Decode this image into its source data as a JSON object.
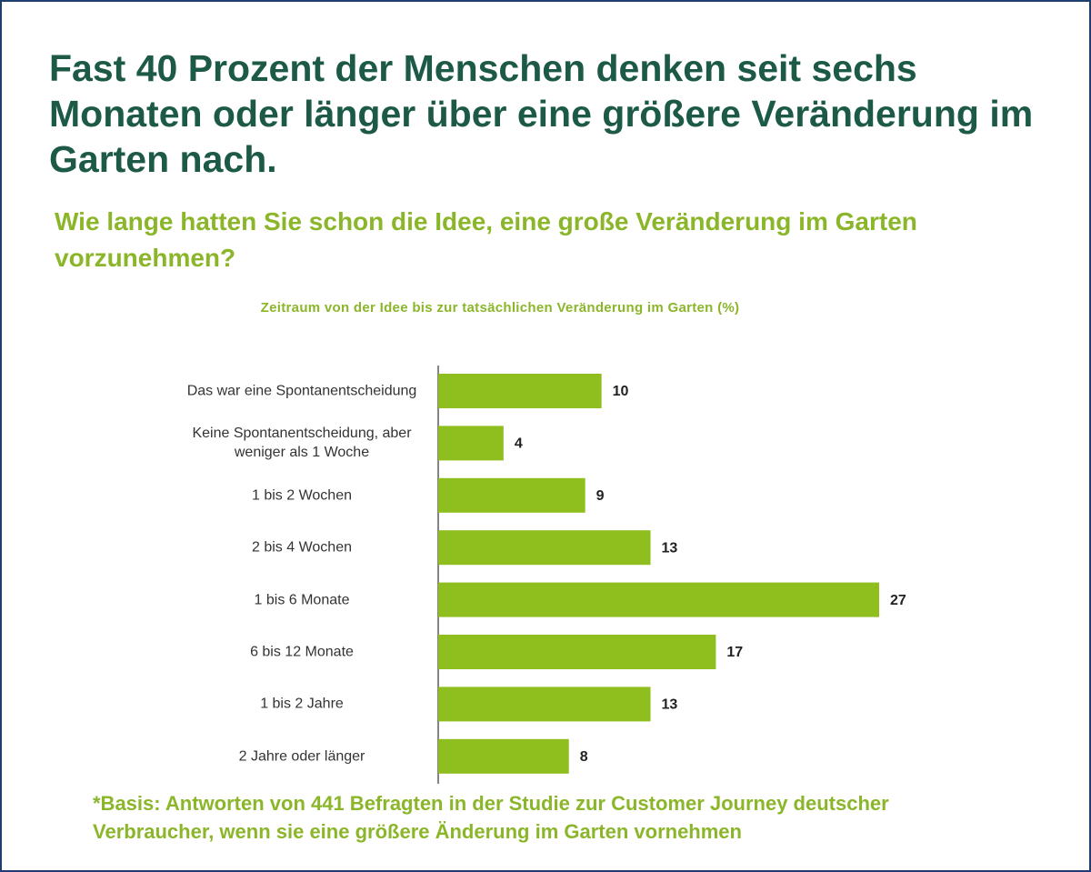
{
  "chart_data": {
    "type": "bar",
    "orientation": "horizontal",
    "title": "Fast 40 Prozent der Menschen denken seit sechs Monaten oder länger über eine größere Veränderung im Garten nach.",
    "subtitle": "Wie lange hatten Sie schon die Idee, eine große Veränderung im Garten vorzunehmen?",
    "chart_title": "Zeitraum von der Idee bis zur tatsächlichen Veränderung im Garten (%)",
    "categories": [
      "Das war eine Spontanentscheidung",
      "Keine Spontanentscheidung, aber weniger als 1 Woche",
      "1 bis 2 Wochen",
      "2 bis 4 Wochen",
      "1 bis 6 Monate",
      "6 bis 12 Monate",
      "1 bis 2 Jahre",
      "2 Jahre oder länger"
    ],
    "values": [
      10,
      4,
      9,
      13,
      27,
      17,
      13,
      8
    ],
    "color": "#8fbe1f",
    "footnote": "*Basis: Antworten von 441 Befragten in der Studie zur Customer Journey deutscher Verbraucher, wenn sie eine größere Änderung im Garten vornehmen"
  }
}
